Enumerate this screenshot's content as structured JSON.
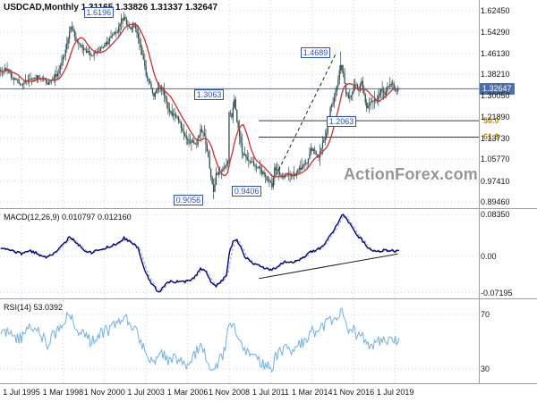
{
  "main_panel": {
    "title": "USDCAD,Monthly 1.31165 1.33826 1.31337 1.32647",
    "watermark": "ActionForex.com",
    "current_price_label": "1.32647",
    "y_axis_labels": [
      "1.62450",
      "1.54290",
      "1.46130",
      "1.38210",
      "1.30050",
      "1.21890",
      "1.13730",
      "1.05770",
      "0.97410",
      "0.89460"
    ],
    "price_callouts": [
      {
        "text": "1.6196",
        "month": 79,
        "price": 1.6196
      },
      {
        "text": "1.3063",
        "month": 164,
        "price": 1.3063
      },
      {
        "text": "1.4689",
        "month": 246,
        "price": 1.4689
      },
      {
        "text": "1.2063",
        "month": 266,
        "price": 1.2063
      },
      {
        "text": "0.9056",
        "month": 148,
        "price": 0.9056
      },
      {
        "text": "0.9406",
        "month": 193,
        "price": 0.9406
      }
    ],
    "fib_levels": [
      {
        "label": "50.0",
        "price": 1.2048
      },
      {
        "label": "61.8",
        "price": 1.1424
      }
    ],
    "trendline": {
      "from": {
        "month": 196,
        "price": 0.995
      },
      "to": {
        "month": 242,
        "price": 1.458
      },
      "style": "dashed"
    }
  },
  "macd_panel": {
    "title": "MACD(12,26,9) 0.010797 0.012160",
    "y_axis_labels": [
      "0.08350",
      "0.00",
      "-0.07195"
    ],
    "trendline": {
      "from": {
        "month": 183,
        "value": -0.044
      },
      "to": {
        "month": 290,
        "value": 0.005
      }
    }
  },
  "rsi_panel": {
    "title": "RSI(14) 53.0392",
    "y_axis_labels": [
      "70",
      "30"
    ]
  },
  "x_axis": {
    "labels": [
      "1 Jul 1995",
      "1 Mar 1998",
      "1 Nov 2000",
      "1 Jul 2003",
      "1 Mar 2006",
      "1 Nov 2008",
      "1 Jul 2011",
      "1 Mar 2014",
      "1 Nov 2016",
      "1 Jul 2019"
    ],
    "tick_interval_months": 32
  },
  "colors": {
    "background": "#ffffff",
    "grid": "#c8d0e4",
    "candle": "#2f4f4f",
    "ma": "#d22d2d",
    "macd": "#000080",
    "macd_signal": "#8fa3bd",
    "rsi": "#6fb0e8",
    "trendline": "#222222",
    "fib_line": "#3a3a3a",
    "fib_label": "#b8860b",
    "current_price_bg": "#4a6ea9",
    "callout": "#2b50c8",
    "watermark": "#969696",
    "separator": "#9aa0a8",
    "axis_text": "#141414"
  },
  "chart_data": [
    {
      "type": "candlestick",
      "symbol": "USDCAD",
      "timeframe": "Monthly",
      "title": "USDCAD,Monthly",
      "ohlc": {
        "open": 1.31165,
        "high": 1.33826,
        "low": 1.31337,
        "close": 1.32647
      },
      "y_range": [
        0.875,
        1.665
      ],
      "x_start_label": "1 Jul 1995",
      "months_before_first_label": 16,
      "last_month_index": 291,
      "close_keypoints": [
        [
          -16,
          1.385
        ],
        [
          -12,
          1.405
        ],
        [
          -8,
          1.375
        ],
        [
          -4,
          1.36
        ],
        [
          0,
          1.346
        ],
        [
          4,
          1.355
        ],
        [
          8,
          1.365
        ],
        [
          12,
          1.372
        ],
        [
          16,
          1.36
        ],
        [
          20,
          1.345
        ],
        [
          24,
          1.366
        ],
        [
          28,
          1.385
        ],
        [
          30,
          1.418
        ],
        [
          33,
          1.455
        ],
        [
          36,
          1.52
        ],
        [
          38,
          1.565
        ],
        [
          40,
          1.54
        ],
        [
          42,
          1.515
        ],
        [
          46,
          1.49
        ],
        [
          50,
          1.47
        ],
        [
          54,
          1.448
        ],
        [
          58,
          1.47
        ],
        [
          62,
          1.485
        ],
        [
          66,
          1.5
        ],
        [
          70,
          1.53
        ],
        [
          74,
          1.545
        ],
        [
          77,
          1.59
        ],
        [
          79,
          1.6
        ],
        [
          81,
          1.57
        ],
        [
          84,
          1.55
        ],
        [
          87,
          1.575
        ],
        [
          90,
          1.52
        ],
        [
          93,
          1.46
        ],
        [
          96,
          1.38
        ],
        [
          99,
          1.35
        ],
        [
          102,
          1.3
        ],
        [
          105,
          1.325
        ],
        [
          108,
          1.33
        ],
        [
          111,
          1.29
        ],
        [
          114,
          1.24
        ],
        [
          117,
          1.225
        ],
        [
          120,
          1.22
        ],
        [
          123,
          1.18
        ],
        [
          126,
          1.15
        ],
        [
          129,
          1.12
        ],
        [
          132,
          1.13
        ],
        [
          135,
          1.115
        ],
        [
          138,
          1.175
        ],
        [
          141,
          1.14
        ],
        [
          144,
          1.06
        ],
        [
          147,
          0.965
        ],
        [
          148,
          0.93
        ],
        [
          150,
          1.0
        ],
        [
          153,
          1.01
        ],
        [
          156,
          1.02
        ],
        [
          159,
          1.06
        ],
        [
          160,
          1.24
        ],
        [
          162,
          1.22
        ],
        [
          164,
          1.28
        ],
        [
          166,
          1.2
        ],
        [
          168,
          1.15
        ],
        [
          170,
          1.08
        ],
        [
          173,
          1.065
        ],
        [
          176,
          1.05
        ],
        [
          179,
          1.04
        ],
        [
          182,
          1.03
        ],
        [
          185,
          1.01
        ],
        [
          188,
          0.99
        ],
        [
          191,
          0.97
        ],
        [
          193,
          0.957
        ],
        [
          195,
          1.02
        ],
        [
          197,
          1.015
        ],
        [
          199,
          1.0
        ],
        [
          202,
          0.995
        ],
        [
          205,
          1.0
        ],
        [
          208,
          0.99
        ],
        [
          211,
          1.0
        ],
        [
          214,
          1.02
        ],
        [
          217,
          1.035
        ],
        [
          220,
          1.045
        ],
        [
          223,
          1.095
        ],
        [
          226,
          1.09
        ],
        [
          229,
          1.065
        ],
        [
          232,
          1.12
        ],
        [
          235,
          1.16
        ],
        [
          238,
          1.25
        ],
        [
          240,
          1.27
        ],
        [
          243,
          1.33
        ],
        [
          245,
          1.4
        ],
        [
          246,
          1.42
        ],
        [
          248,
          1.38
        ],
        [
          250,
          1.31
        ],
        [
          252,
          1.29
        ],
        [
          254,
          1.3
        ],
        [
          256,
          1.335
        ],
        [
          258,
          1.345
        ],
        [
          260,
          1.33
        ],
        [
          262,
          1.35
        ],
        [
          264,
          1.3
        ],
        [
          266,
          1.25
        ],
        [
          268,
          1.26
        ],
        [
          270,
          1.28
        ],
        [
          272,
          1.29
        ],
        [
          274,
          1.285
        ],
        [
          276,
          1.31
        ],
        [
          278,
          1.325
        ],
        [
          280,
          1.31
        ],
        [
          282,
          1.33
        ],
        [
          284,
          1.34
        ],
        [
          286,
          1.345
        ],
        [
          288,
          1.315
        ],
        [
          290,
          1.325
        ],
        [
          291,
          1.32647
        ]
      ],
      "extreme_anchors": [
        {
          "month": 79,
          "high": 1.6196
        },
        {
          "month": 148,
          "low": 0.9056
        },
        {
          "month": 193,
          "low": 0.9406
        },
        {
          "month": 246,
          "high": 1.4689
        }
      ],
      "moving_average": {
        "period": 12
      }
    },
    {
      "type": "line",
      "name": "MACD(12,26,9)",
      "current_values": [
        0.010797,
        0.01216
      ],
      "y_labels_values": [
        0.0835,
        0.0,
        -0.07195
      ],
      "values_keypoints": [
        [
          -16,
          0.015
        ],
        [
          -8,
          0.012
        ],
        [
          0,
          0.005
        ],
        [
          6,
          0.012
        ],
        [
          12,
          0.006
        ],
        [
          18,
          -0.002
        ],
        [
          24,
          0.002
        ],
        [
          30,
          0.018
        ],
        [
          37,
          0.038
        ],
        [
          42,
          0.028
        ],
        [
          48,
          0.012
        ],
        [
          54,
          0.008
        ],
        [
          60,
          0.012
        ],
        [
          66,
          0.018
        ],
        [
          72,
          0.024
        ],
        [
          79,
          0.036
        ],
        [
          84,
          0.03
        ],
        [
          90,
          0.015
        ],
        [
          94,
          -0.02
        ],
        [
          98,
          -0.045
        ],
        [
          102,
          -0.06
        ],
        [
          106,
          -0.072
        ],
        [
          110,
          -0.058
        ],
        [
          114,
          -0.05
        ],
        [
          118,
          -0.052
        ],
        [
          122,
          -0.048
        ],
        [
          126,
          -0.05
        ],
        [
          130,
          -0.047
        ],
        [
          134,
          -0.04
        ],
        [
          138,
          -0.025
        ],
        [
          142,
          -0.03
        ],
        [
          146,
          -0.05
        ],
        [
          150,
          -0.058
        ],
        [
          154,
          -0.05
        ],
        [
          158,
          -0.035
        ],
        [
          160,
          0.005
        ],
        [
          163,
          0.03
        ],
        [
          166,
          0.032
        ],
        [
          169,
          0.02
        ],
        [
          172,
          0.0
        ],
        [
          176,
          -0.01
        ],
        [
          180,
          -0.015
        ],
        [
          184,
          -0.02
        ],
        [
          188,
          -0.024
        ],
        [
          192,
          -0.028
        ],
        [
          196,
          -0.022
        ],
        [
          200,
          -0.015
        ],
        [
          204,
          -0.01
        ],
        [
          208,
          -0.012
        ],
        [
          212,
          -0.01
        ],
        [
          216,
          -0.004
        ],
        [
          220,
          0.004
        ],
        [
          224,
          0.01
        ],
        [
          228,
          0.013
        ],
        [
          232,
          0.02
        ],
        [
          236,
          0.034
        ],
        [
          240,
          0.05
        ],
        [
          244,
          0.068
        ],
        [
          247,
          0.0835
        ],
        [
          250,
          0.076
        ],
        [
          253,
          0.064
        ],
        [
          256,
          0.052
        ],
        [
          259,
          0.042
        ],
        [
          262,
          0.033
        ],
        [
          265,
          0.024
        ],
        [
          268,
          0.016
        ],
        [
          271,
          0.011
        ],
        [
          274,
          0.009
        ],
        [
          277,
          0.0105
        ],
        [
          280,
          0.0125
        ],
        [
          283,
          0.012
        ],
        [
          286,
          0.0105
        ],
        [
          289,
          0.011
        ],
        [
          291,
          0.01216
        ]
      ]
    },
    {
      "type": "line",
      "name": "RSI(14)",
      "current_value": 53.0392,
      "levels": [
        70,
        30
      ],
      "values_keypoints": [
        [
          -16,
          58
        ],
        [
          -8,
          55
        ],
        [
          0,
          52
        ],
        [
          5,
          58
        ],
        [
          10,
          62
        ],
        [
          15,
          55
        ],
        [
          20,
          48
        ],
        [
          25,
          55
        ],
        [
          30,
          62
        ],
        [
          37,
          70
        ],
        [
          42,
          60
        ],
        [
          48,
          55
        ],
        [
          54,
          50
        ],
        [
          60,
          55
        ],
        [
          66,
          58
        ],
        [
          72,
          62
        ],
        [
          79,
          68
        ],
        [
          84,
          62
        ],
        [
          90,
          55
        ],
        [
          96,
          40
        ],
        [
          102,
          33
        ],
        [
          108,
          42
        ],
        [
          114,
          36
        ],
        [
          120,
          38
        ],
        [
          126,
          33
        ],
        [
          132,
          38
        ],
        [
          138,
          48
        ],
        [
          144,
          35
        ],
        [
          148,
          28
        ],
        [
          152,
          36
        ],
        [
          156,
          42
        ],
        [
          160,
          60
        ],
        [
          163,
          66
        ],
        [
          168,
          48
        ],
        [
          172,
          42
        ],
        [
          176,
          40
        ],
        [
          180,
          38
        ],
        [
          184,
          36
        ],
        [
          188,
          33
        ],
        [
          193,
          30
        ],
        [
          196,
          40
        ],
        [
          200,
          42
        ],
        [
          204,
          44
        ],
        [
          208,
          42
        ],
        [
          212,
          45
        ],
        [
          216,
          50
        ],
        [
          220,
          52
        ],
        [
          224,
          58
        ],
        [
          228,
          56
        ],
        [
          232,
          60
        ],
        [
          236,
          64
        ],
        [
          240,
          66
        ],
        [
          244,
          70
        ],
        [
          247,
          72
        ],
        [
          250,
          62
        ],
        [
          253,
          57
        ],
        [
          256,
          58
        ],
        [
          259,
          55
        ],
        [
          262,
          56
        ],
        [
          265,
          50
        ],
        [
          268,
          46
        ],
        [
          271,
          48
        ],
        [
          274,
          50
        ],
        [
          277,
          52
        ],
        [
          280,
          51
        ],
        [
          283,
          53
        ],
        [
          286,
          54
        ],
        [
          288,
          50
        ],
        [
          291,
          53.04
        ]
      ]
    }
  ]
}
